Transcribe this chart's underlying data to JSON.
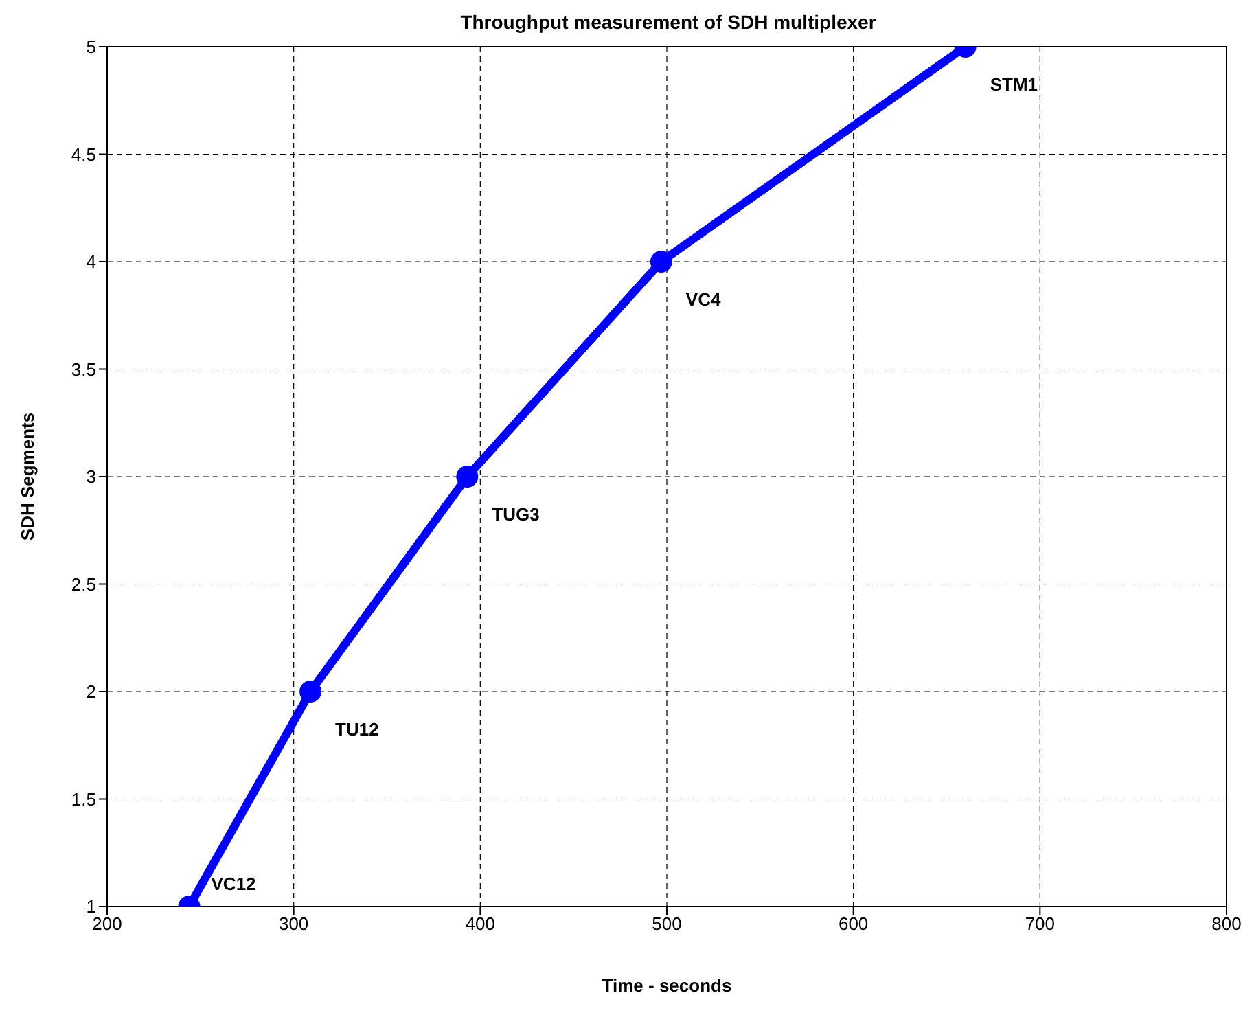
{
  "chart_data": {
    "type": "line",
    "title": "Throughput measurement of SDH multiplexer",
    "xlabel": "Time - seconds",
    "ylabel": "SDH Segments",
    "x": [
      244,
      309,
      393,
      497,
      660
    ],
    "series": [
      {
        "color": "#0000ff",
        "values": [
          1,
          2,
          3,
          4,
          5
        ]
      }
    ],
    "xlim": [
      200,
      800
    ],
    "xticks": [
      200,
      300,
      400,
      500,
      600,
      700,
      800
    ],
    "ylim": [
      1,
      5
    ],
    "yticks": [
      1,
      1.5,
      2,
      2.5,
      3,
      3.5,
      4,
      4.5,
      5
    ],
    "grid": true,
    "marker": "circle",
    "line_style": "solid",
    "annotations": [
      {
        "text": "VC12",
        "x": 244,
        "y": 1
      },
      {
        "text": "TU12",
        "x": 309,
        "y": 2
      },
      {
        "text": "TUG3",
        "x": 393,
        "y": 3
      },
      {
        "text": "VC4",
        "x": 497,
        "y": 4
      },
      {
        "text": "STM1",
        "x": 660,
        "y": 5
      }
    ]
  }
}
